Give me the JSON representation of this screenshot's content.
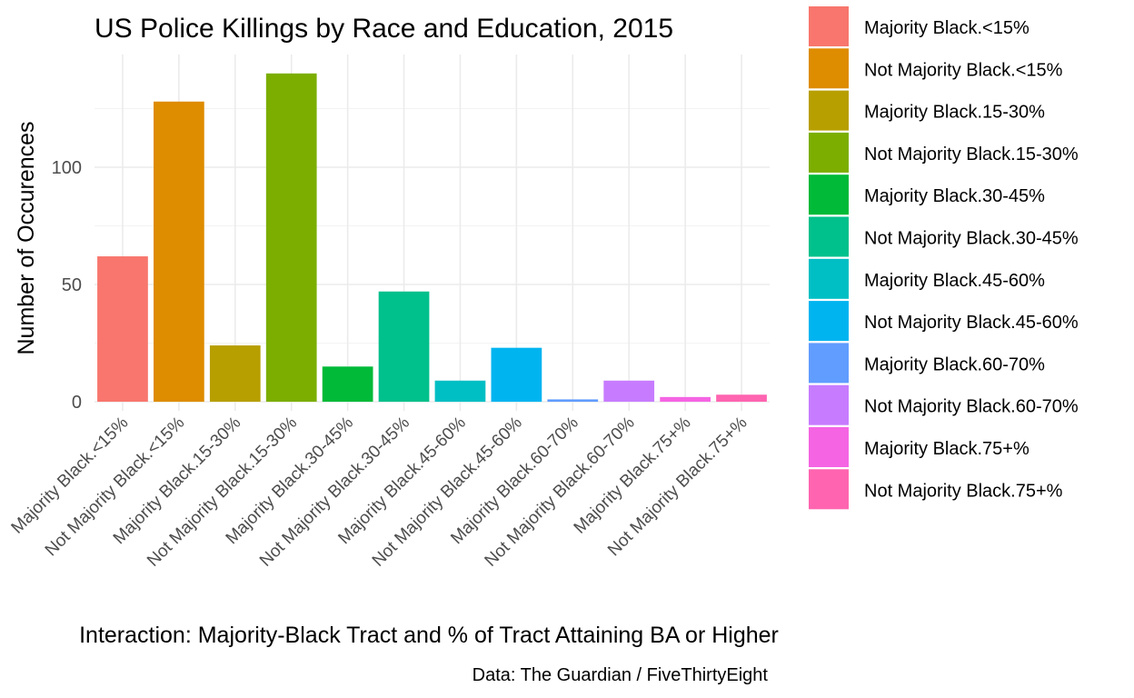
{
  "chart_data": {
    "type": "bar",
    "title": "US Police Killings by Race and Education, 2015",
    "xlabel": "Interaction: Majority-Black Tract and % of Tract Attaining BA or Higher",
    "ylabel": "Number of Occurences",
    "caption": "Data: The Guardian / FiveThirtyEight",
    "categories": [
      "Majority Black.<15%",
      "Not Majority Black.<15%",
      "Majority Black.15-30%",
      "Not Majority Black.15-30%",
      "Majority Black.30-45%",
      "Not Majority Black.30-45%",
      "Majority Black.45-60%",
      "Not Majority Black.45-60%",
      "Majority Black.60-70%",
      "Not Majority Black.60-70%",
      "Majority Black.75+%",
      "Not Majority Black.75+%"
    ],
    "values": [
      62,
      128,
      24,
      140,
      15,
      47,
      9,
      23,
      1,
      9,
      2,
      3
    ],
    "colors": [
      "#F8766D",
      "#DE8C00",
      "#B79F00",
      "#7CAE00",
      "#00BA38",
      "#00C08B",
      "#00BFC4",
      "#00B4F0",
      "#619CFF",
      "#C77CFF",
      "#F564E3",
      "#FF64B0"
    ],
    "yticks": [
      0,
      50,
      100
    ],
    "ylim": [
      0,
      147
    ],
    "grid": true,
    "legend_position": "right"
  }
}
